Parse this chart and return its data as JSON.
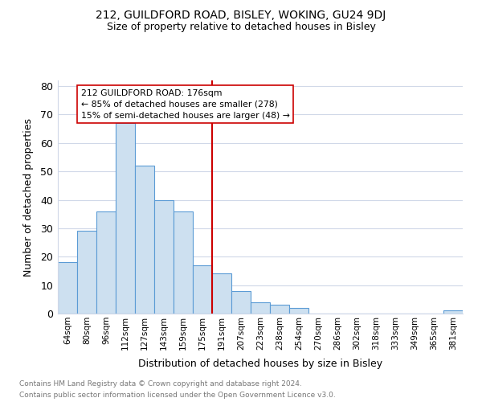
{
  "title_line1": "212, GUILDFORD ROAD, BISLEY, WOKING, GU24 9DJ",
  "title_line2": "Size of property relative to detached houses in Bisley",
  "xlabel": "Distribution of detached houses by size in Bisley",
  "ylabel": "Number of detached properties",
  "bar_labels": [
    "64sqm",
    "80sqm",
    "96sqm",
    "112sqm",
    "127sqm",
    "143sqm",
    "159sqm",
    "175sqm",
    "191sqm",
    "207sqm",
    "223sqm",
    "238sqm",
    "254sqm",
    "270sqm",
    "286sqm",
    "302sqm",
    "318sqm",
    "333sqm",
    "349sqm",
    "365sqm",
    "381sqm"
  ],
  "bar_values": [
    18,
    29,
    36,
    67,
    52,
    40,
    36,
    17,
    14,
    8,
    4,
    3,
    2,
    0,
    0,
    0,
    0,
    0,
    0,
    0,
    1
  ],
  "bar_color": "#cde0f0",
  "bar_edge_color": "#5b9bd5",
  "reference_line_x": 7.5,
  "reference_line_color": "#cc0000",
  "annotation_box_text": "212 GUILDFORD ROAD: 176sqm\n← 85% of detached houses are smaller (278)\n15% of semi-detached houses are larger (48) →",
  "ylim": [
    0,
    82
  ],
  "yticks": [
    0,
    10,
    20,
    30,
    40,
    50,
    60,
    70,
    80
  ],
  "footer_line1": "Contains HM Land Registry data © Crown copyright and database right 2024.",
  "footer_line2": "Contains public sector information licensed under the Open Government Licence v3.0.",
  "bg_color": "#ffffff",
  "grid_color": "#d0d8e8"
}
